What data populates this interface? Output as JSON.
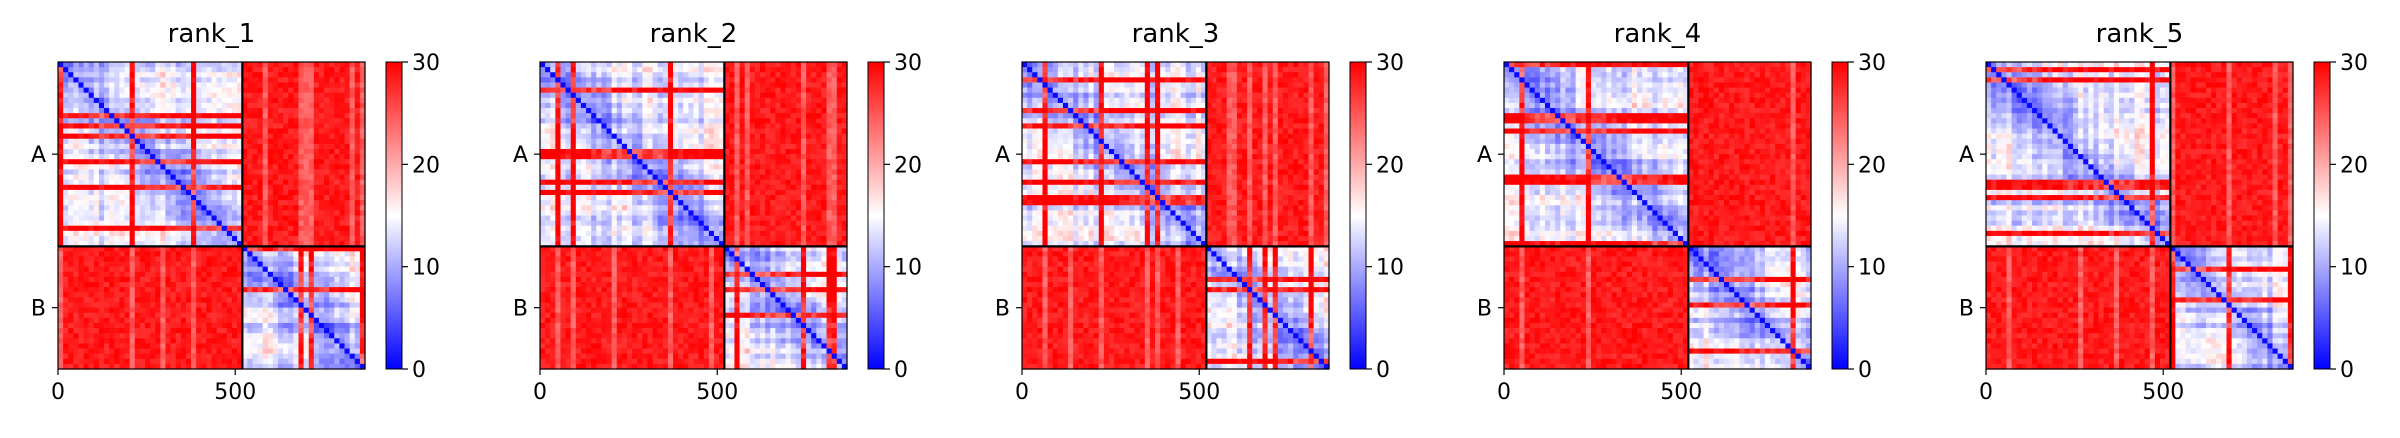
{
  "figure": {
    "description": ""
  },
  "chart_data": [
    {
      "type": "heatmap",
      "title": "rank_1",
      "x_ticks": [
        0,
        500
      ],
      "y_tick_labels": [
        "A",
        "B"
      ],
      "chain_boundary": 520,
      "n_residues": 866,
      "colorbar": {
        "min": 0,
        "max": 30,
        "ticks": [
          0,
          10,
          20,
          30
        ],
        "colormap": "bwr"
      },
      "blocks": {
        "AA": "low (blue)",
        "AB": "high (red)",
        "BA": "high (red)",
        "BB": "low (blue)"
      }
    },
    {
      "type": "heatmap",
      "title": "rank_2",
      "x_ticks": [
        0,
        500
      ],
      "y_tick_labels": [
        "A",
        "B"
      ],
      "chain_boundary": 520,
      "n_residues": 866,
      "colorbar": {
        "min": 0,
        "max": 30,
        "ticks": [
          0,
          10,
          20,
          30
        ],
        "colormap": "bwr"
      },
      "blocks": {
        "AA": "low (blue)",
        "AB": "high (red)",
        "BA": "high (red)",
        "BB": "low (blue)"
      }
    },
    {
      "type": "heatmap",
      "title": "rank_3",
      "x_ticks": [
        0,
        500
      ],
      "y_tick_labels": [
        "A",
        "B"
      ],
      "chain_boundary": 520,
      "n_residues": 866,
      "colorbar": {
        "min": 0,
        "max": 30,
        "ticks": [
          0,
          10,
          20,
          30
        ],
        "colormap": "bwr"
      },
      "blocks": {
        "AA": "low (blue)",
        "AB": "high (red)",
        "BA": "high (red)",
        "BB": "low (blue)"
      }
    },
    {
      "type": "heatmap",
      "title": "rank_4",
      "x_ticks": [
        0,
        500
      ],
      "y_tick_labels": [
        "A",
        "B"
      ],
      "chain_boundary": 520,
      "n_residues": 866,
      "colorbar": {
        "min": 0,
        "max": 30,
        "ticks": [
          0,
          10,
          20,
          30
        ],
        "colormap": "bwr"
      },
      "blocks": {
        "AA": "low (blue)",
        "AB": "high (red)",
        "BA": "high (red)",
        "BB": "low (blue)"
      }
    },
    {
      "type": "heatmap",
      "title": "rank_5",
      "x_ticks": [
        0,
        500
      ],
      "y_tick_labels": [
        "A",
        "B"
      ],
      "chain_boundary": 520,
      "n_residues": 866,
      "colorbar": {
        "min": 0,
        "max": 30,
        "ticks": [
          0,
          10,
          20,
          30
        ],
        "colormap": "bwr"
      },
      "blocks": {
        "AA": "low (blue)",
        "AB": "high (red)",
        "BA": "high (red)",
        "BB": "low (blue)"
      }
    }
  ]
}
